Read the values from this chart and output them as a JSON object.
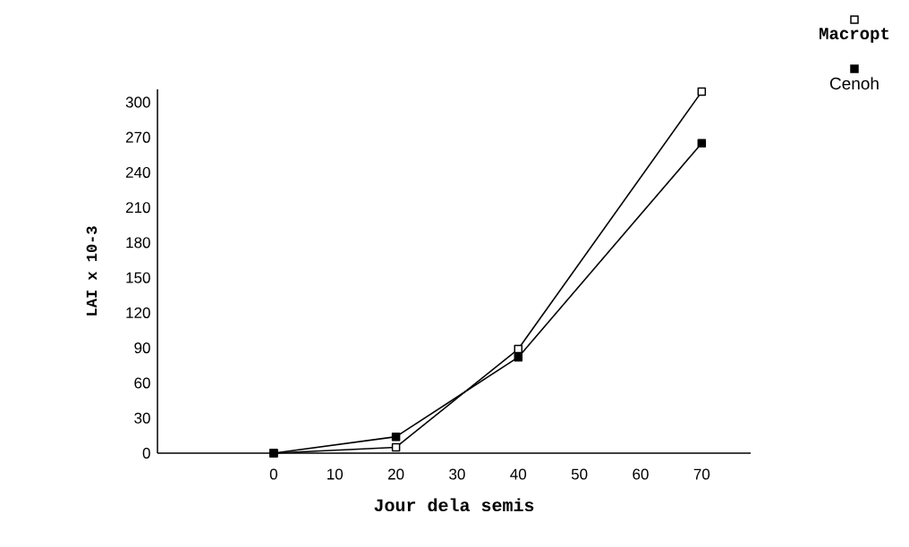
{
  "chart_data": {
    "type": "line",
    "xlabel": "Jour dela semis",
    "ylabel": "LAI x 10-3",
    "x": [
      0,
      20,
      40,
      70
    ],
    "series": [
      {
        "name": "Macropt",
        "color": "#000000",
        "marker": "square",
        "values": [
          0,
          5,
          89,
          309
        ]
      },
      {
        "name": "Cenoh",
        "color": "#000000",
        "marker": "square",
        "values": [
          0,
          14,
          82,
          265
        ]
      }
    ],
    "xlim": [
      -19,
      78
    ],
    "ylim": [
      0,
      311
    ],
    "xticks": [
      0,
      10,
      20,
      30,
      40,
      50,
      60,
      70
    ],
    "yticks": [
      0,
      30,
      60,
      90,
      120,
      150,
      180,
      210,
      240,
      270,
      300
    ],
    "grid": false,
    "legend": "top right",
    "line_style": "solid"
  }
}
